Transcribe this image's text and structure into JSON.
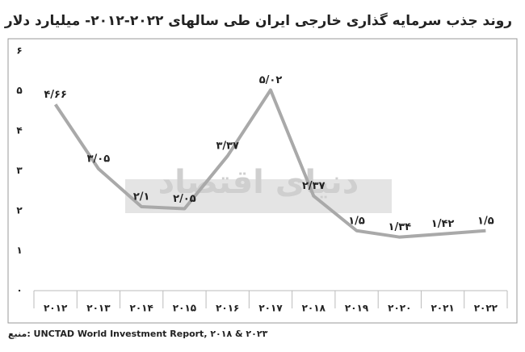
{
  "chart_data": {
    "type": "line",
    "title": "روند جذب سرمایه گذاری خارجی ایران طی سالهای ۲۰۲۲-۲۰۱۲- میلیارد دلار",
    "categories": [
      "۲۰۱۲",
      "۲۰۱۳",
      "۲۰۱۴",
      "۲۰۱۵",
      "۲۰۱۶",
      "۲۰۱۷",
      "۲۰۱۸",
      "۲۰۱۹",
      "۲۰۲۰",
      "۲۰۲۱",
      "۲۰۲۲"
    ],
    "values": [
      4.66,
      3.05,
      2.1,
      2.05,
      3.37,
      5.02,
      2.37,
      1.5,
      1.34,
      1.42,
      1.5
    ],
    "value_labels": [
      "۴/۶۶",
      "۳/۰۵",
      "۲/۱",
      "۲/۰۵",
      "۳/۳۷",
      "۵/۰۲",
      "۲/۳۷",
      "۱/۵",
      "۱/۳۴",
      "۱/۴۲",
      "۱/۵"
    ],
    "color": "#a9a9a9",
    "ylim": [
      0,
      6
    ],
    "yticks": [
      {
        "value": 0,
        "label": "۰"
      },
      {
        "value": 1,
        "label": "۱"
      },
      {
        "value": 2,
        "label": "۲"
      },
      {
        "value": 3,
        "label": "۳"
      },
      {
        "value": 4,
        "label": "۴"
      },
      {
        "value": 5,
        "label": "۵"
      },
      {
        "value": 6,
        "label": "۶"
      }
    ],
    "grid": false,
    "watermark": "دنیای اقتصاد",
    "source": "منبع: UNCTAD World Investment Report, ۲۰۱۸ & ۲۰۲۳"
  }
}
